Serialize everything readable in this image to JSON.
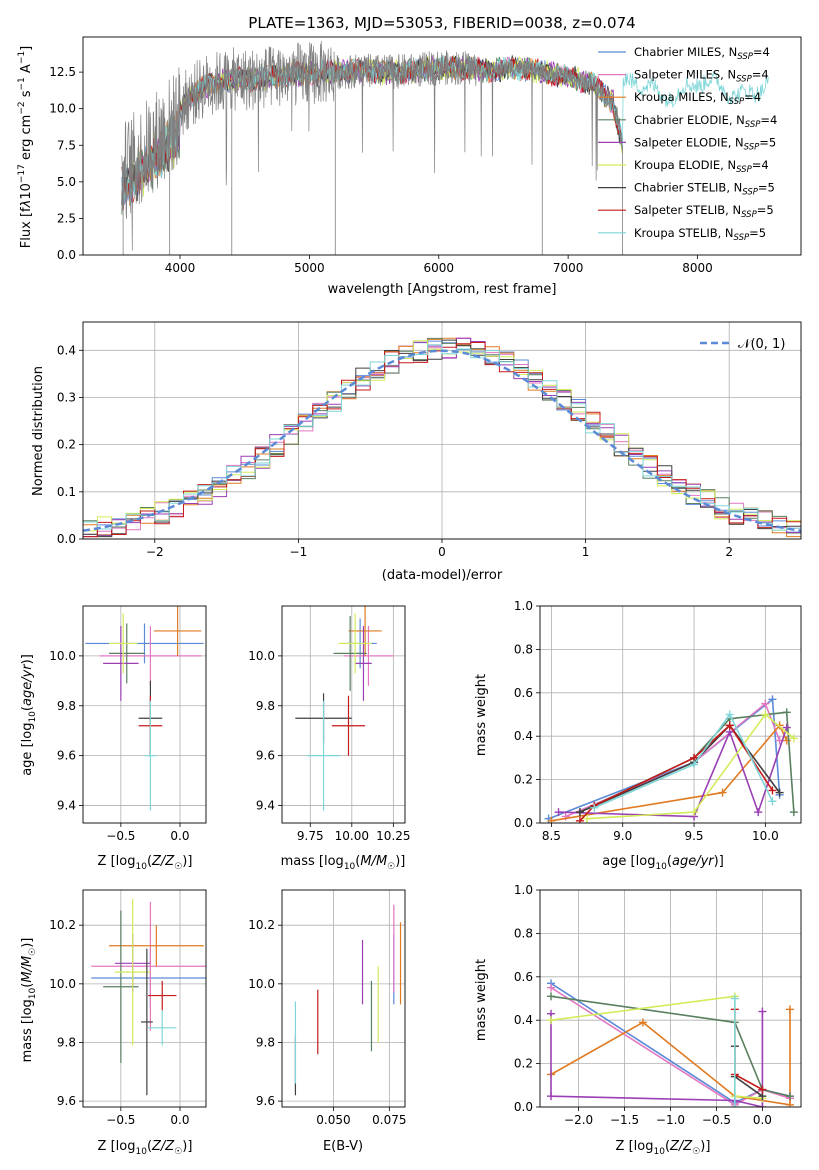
{
  "colors": {
    "chabrier_miles": "#5b8bd6",
    "salpeter_miles": "#e377c2",
    "kroupa_miles": "#e07b22",
    "chabrier_elodie": "#5a8060",
    "salpeter_elodie": "#9b3fb5",
    "kroupa_elodie": "#d2ec5a",
    "chabrier_stelib": "#404040",
    "salpeter_stelib": "#c41a1a",
    "kroupa_stelib": "#7fd6d8",
    "gaussian": "#5b8bd6",
    "raw_spectrum": "#808080",
    "grid": "#b0b0b0"
  },
  "chart_data": [
    {
      "id": "spectrum",
      "type": "line",
      "title": "PLATE=1363, MJD=53053, FIBERID=0038, z=0.074",
      "xlabel": "wavelength [Angstrom, rest frame]",
      "ylabel": "Flux [f_λ10^-17 erg cm^-2 s^-1 A^-1]",
      "xlim": [
        3250,
        8800
      ],
      "ylim": [
        0,
        14.9
      ],
      "xticks": [
        "4000",
        "5000",
        "6000",
        "7000",
        "8000"
      ],
      "yticks": [
        "0.0",
        "2.5",
        "5.0",
        "7.5",
        "10.0",
        "12.5"
      ],
      "grid": false,
      "legend_placement": "right",
      "legend": [
        {
          "label": "Chabrier MILES, N",
          "sub": "SSP",
          "suffix": "=4",
          "color": "#5b8bd6"
        },
        {
          "label": "Salpeter MILES, N",
          "sub": "SSP",
          "suffix": "=4",
          "color": "#e377c2"
        },
        {
          "label": "Kroupa MILES, N",
          "sub": "SSP",
          "suffix": "=4",
          "color": "#e07b22"
        },
        {
          "label": "Chabrier ELODIE, N",
          "sub": "SSP",
          "suffix": "=4",
          "color": "#5a8060"
        },
        {
          "label": "Salpeter ELODIE, N",
          "sub": "SSP",
          "suffix": "=5",
          "color": "#9b3fb5"
        },
        {
          "label": "Kroupa ELODIE, N",
          "sub": "SSP",
          "suffix": "=4",
          "color": "#d2ec5a"
        },
        {
          "label": "Chabrier STELIB, N",
          "sub": "SSP",
          "suffix": "=5",
          "color": "#404040"
        },
        {
          "label": "Salpeter STELIB, N",
          "sub": "SSP",
          "suffix": "=5",
          "color": "#c41a1a"
        },
        {
          "label": "Kroupa STELIB, N",
          "sub": "SSP",
          "suffix": "=5",
          "color": "#7fd6d8"
        }
      ],
      "continuum": {
        "x": [
          3550,
          3700,
          3850,
          3950,
          4050,
          4200,
          4400,
          4600,
          4800,
          5000,
          5200,
          5400,
          5600,
          5800,
          6000,
          6200,
          6400,
          6600,
          6800,
          7000,
          7200,
          7350,
          7420
        ],
        "y": [
          5.6,
          6.8,
          8.2,
          9.0,
          10.6,
          11.6,
          12.0,
          12.0,
          12.3,
          12.4,
          12.5,
          12.6,
          12.5,
          12.6,
          12.8,
          12.8,
          12.6,
          12.8,
          12.5,
          12.2,
          11.6,
          10.4,
          7.5
        ]
      },
      "model_range": [
        3550,
        7420
      ],
      "kroupa_stelib_range": [
        3550,
        8550
      ],
      "absorption_lines": [
        3560,
        3920,
        4400,
        5200,
        6800,
        7420
      ]
    },
    {
      "id": "residuals",
      "type": "bar",
      "xlabel": "(data-model)/error",
      "ylabel": "Normed distribution",
      "xlim": [
        -2.5,
        2.5
      ],
      "ylim": [
        0,
        0.46
      ],
      "xticks": [
        "−2",
        "−1",
        "0",
        "1",
        "2"
      ],
      "yticks": [
        "0.0",
        "0.1",
        "0.2",
        "0.3",
        "0.4"
      ],
      "grid": true,
      "legend_placement": "top-right",
      "legend_label": "𝒩(0, 1)",
      "bin_width": 0.1
    },
    {
      "id": "age_vs_Z",
      "type": "scatter",
      "xlabel": "Z [log10(Z/Z☉)]",
      "ylabel": "age  [log10(age/yr)]",
      "xlim": [
        -0.82,
        0.22
      ],
      "ylim": [
        9.33,
        10.2
      ],
      "xticks": [
        "−0.5",
        "0.0"
      ],
      "yticks": [
        "9.4",
        "9.6",
        "9.8",
        "10.0"
      ],
      "grid": true,
      "points": [
        {
          "m": "chabrier_miles",
          "x": -0.3,
          "xerr": 0.5,
          "y": 10.05,
          "yerr": 0.08
        },
        {
          "m": "salpeter_miles",
          "x": -0.25,
          "xerr": 0.43,
          "y": 10.0,
          "yerr": 0.12
        },
        {
          "m": "kroupa_miles",
          "x": -0.02,
          "xerr": 0.2,
          "y": 10.1,
          "yerr": 0.1
        },
        {
          "m": "chabrier_elodie",
          "x": -0.45,
          "xerr": 0.15,
          "y": 10.01,
          "yerr": 0.12
        },
        {
          "m": "salpeter_elodie",
          "x": -0.5,
          "xerr": 0.15,
          "y": 9.97,
          "yerr": 0.15
        },
        {
          "m": "kroupa_elodie",
          "x": -0.48,
          "xerr": 0.12,
          "y": 10.05,
          "yerr": 0.12
        },
        {
          "m": "chabrier_stelib",
          "x": -0.25,
          "xerr": 0.1,
          "y": 9.75,
          "yerr": 0.15
        },
        {
          "m": "salpeter_stelib",
          "x": -0.25,
          "xerr": 0.1,
          "y": 9.72,
          "yerr": 0.12
        },
        {
          "m": "kroupa_stelib",
          "x": -0.25,
          "xerr": 0.05,
          "y": 9.6,
          "yerr": 0.22
        }
      ]
    },
    {
      "id": "age_vs_mass",
      "type": "scatter",
      "xlabel": "mass [log10(M/M☉)]",
      "ylabel": "",
      "xlim": [
        9.58,
        10.32
      ],
      "ylim": [
        9.33,
        10.2
      ],
      "xticks": [
        "9.75",
        "10.00",
        "10.25"
      ],
      "yticks": [
        "9.4",
        "9.6",
        "9.8",
        "10.0"
      ],
      "grid": true,
      "points": [
        {
          "m": "chabrier_miles",
          "x": 10.05,
          "xerr": 0.1,
          "y": 10.05,
          "yerr": 0.1
        },
        {
          "m": "salpeter_miles",
          "x": 10.1,
          "xerr": 0.15,
          "y": 10.0,
          "yerr": 0.12
        },
        {
          "m": "kroupa_miles",
          "x": 10.08,
          "xerr": 0.1,
          "y": 10.1,
          "yerr": 0.1
        },
        {
          "m": "chabrier_elodie",
          "x": 9.99,
          "xerr": 0.1,
          "y": 10.01,
          "yerr": 0.15
        },
        {
          "m": "salpeter_elodie",
          "x": 10.07,
          "xerr": 0.05,
          "y": 9.97,
          "yerr": 0.15
        },
        {
          "m": "kroupa_elodie",
          "x": 10.02,
          "xerr": 0.1,
          "y": 10.05,
          "yerr": 0.12
        },
        {
          "m": "chabrier_stelib",
          "x": 9.83,
          "xerr": 0.17,
          "y": 9.75,
          "yerr": 0.1
        },
        {
          "m": "salpeter_stelib",
          "x": 9.98,
          "xerr": 0.1,
          "y": 9.72,
          "yerr": 0.12
        },
        {
          "m": "kroupa_stelib",
          "x": 9.83,
          "xerr": 0.1,
          "y": 9.6,
          "yerr": 0.22
        }
      ]
    },
    {
      "id": "massweight_vs_age",
      "type": "line",
      "xlabel": "age  [log10(age/yr)]",
      "ylabel": "mass weight",
      "xlim": [
        8.42,
        10.25
      ],
      "ylim": [
        0,
        1
      ],
      "xticks": [
        "8.5",
        "9.0",
        "9.5",
        "10.0"
      ],
      "yticks": [
        "0.0",
        "0.2",
        "0.4",
        "0.6",
        "0.8",
        "1.0"
      ],
      "grid": true,
      "series": [
        {
          "m": "chabrier_miles",
          "x": [
            8.48,
            9.5,
            10.05,
            10.1
          ],
          "y": [
            0.02,
            0.28,
            0.57,
            0.13
          ]
        },
        {
          "m": "salpeter_miles",
          "x": [
            8.6,
            9.5,
            10.0,
            10.1
          ],
          "y": [
            0.03,
            0.28,
            0.55,
            0.38
          ]
        },
        {
          "m": "kroupa_miles",
          "x": [
            8.5,
            9.7,
            10.1,
            10.15
          ],
          "y": [
            0.01,
            0.14,
            0.45,
            0.38
          ]
        },
        {
          "m": "chabrier_elodie",
          "x": [
            8.7,
            9.5,
            9.75,
            10.15,
            10.2
          ],
          "y": [
            0.05,
            0.3,
            0.48,
            0.51,
            0.05
          ]
        },
        {
          "m": "salpeter_elodie",
          "x": [
            8.55,
            9.5,
            9.75,
            9.95,
            10.15
          ],
          "y": [
            0.05,
            0.03,
            0.42,
            0.05,
            0.44
          ]
        },
        {
          "m": "kroupa_elodie",
          "x": [
            8.75,
            9.5,
            10.0,
            10.2
          ],
          "y": [
            0.02,
            0.05,
            0.5,
            0.39
          ]
        },
        {
          "m": "chabrier_stelib",
          "x": [
            8.7,
            9.5,
            9.75,
            10.1
          ],
          "y": [
            0.05,
            0.28,
            0.45,
            0.14
          ]
        },
        {
          "m": "salpeter_stelib",
          "x": [
            8.7,
            8.8,
            9.5,
            9.75,
            10.05
          ],
          "y": [
            0.01,
            0.08,
            0.3,
            0.45,
            0.15
          ]
        },
        {
          "m": "kroupa_stelib",
          "x": [
            8.8,
            9.5,
            9.75,
            10.05
          ],
          "y": [
            0.07,
            0.27,
            0.5,
            0.1
          ]
        }
      ]
    },
    {
      "id": "mass_vs_Z",
      "type": "scatter",
      "xlabel": "Z [log10(Z/Z☉)]",
      "ylabel": "mass [log10(M/M☉)]",
      "xlim": [
        -0.82,
        0.22
      ],
      "ylim": [
        9.58,
        10.32
      ],
      "xticks": [
        "−0.5",
        "0.0"
      ],
      "yticks": [
        "9.6",
        "9.8",
        "10.0",
        "10.2"
      ],
      "grid": true,
      "points": [
        {
          "m": "chabrier_miles",
          "x": -0.25,
          "xerr": 0.5,
          "y": 10.02,
          "yerr": 0.1
        },
        {
          "m": "salpeter_miles",
          "x": -0.25,
          "xerr": 0.5,
          "y": 10.06,
          "yerr": 0.22
        },
        {
          "m": "kroupa_miles",
          "x": -0.2,
          "xerr": 0.4,
          "y": 10.13,
          "yerr": 0.07
        },
        {
          "m": "chabrier_elodie",
          "x": -0.5,
          "xerr": 0.15,
          "y": 9.99,
          "yerr": 0.26
        },
        {
          "m": "salpeter_elodie",
          "x": -0.4,
          "xerr": 0.15,
          "y": 10.07,
          "yerr": 0.1
        },
        {
          "m": "kroupa_elodie",
          "x": -0.4,
          "xerr": 0.15,
          "y": 10.04,
          "yerr": 0.25
        },
        {
          "m": "chabrier_stelib",
          "x": -0.28,
          "xerr": 0.05,
          "y": 9.87,
          "yerr": 0.25
        },
        {
          "m": "salpeter_stelib",
          "x": -0.15,
          "xerr": 0.12,
          "y": 9.96,
          "yerr": 0.05
        },
        {
          "m": "kroupa_stelib",
          "x": -0.15,
          "xerr": 0.12,
          "y": 9.85,
          "yerr": 0.06
        }
      ]
    },
    {
      "id": "mass_vs_ebv",
      "type": "scatter",
      "xlabel": "E(B-V)",
      "ylabel": "",
      "xlim": [
        0.027,
        0.082
      ],
      "ylim": [
        9.58,
        10.32
      ],
      "xticks": [
        "0.050",
        "0.075"
      ],
      "yticks": [
        "9.6",
        "9.8",
        "10.0",
        "10.2"
      ],
      "grid": true,
      "points": [
        {
          "m": "chabrier_miles",
          "x": 0.077,
          "xerr": 0.0,
          "y": 10.05,
          "yerr": 0.12
        },
        {
          "m": "salpeter_miles",
          "x": 0.077,
          "xerr": 0.0,
          "y": 10.12,
          "yerr": 0.15
        },
        {
          "m": "kroupa_miles",
          "x": 0.08,
          "xerr": 0.0,
          "y": 10.07,
          "yerr": 0.14
        },
        {
          "m": "chabrier_elodie",
          "x": 0.067,
          "xerr": 0.0,
          "y": 9.89,
          "yerr": 0.12
        },
        {
          "m": "salpeter_elodie",
          "x": 0.063,
          "xerr": 0.0,
          "y": 10.04,
          "yerr": 0.11
        },
        {
          "m": "kroupa_elodie",
          "x": 0.07,
          "xerr": 0.0,
          "y": 9.93,
          "yerr": 0.13
        },
        {
          "m": "chabrier_stelib",
          "x": 0.033,
          "xerr": 0.0,
          "y": 9.72,
          "yerr": 0.1
        },
        {
          "m": "salpeter_stelib",
          "x": 0.043,
          "xerr": 0.0,
          "y": 9.87,
          "yerr": 0.11
        },
        {
          "m": "kroupa_stelib",
          "x": 0.033,
          "xerr": 0.0,
          "y": 9.8,
          "yerr": 0.14
        }
      ]
    },
    {
      "id": "massweight_vs_Z",
      "type": "line",
      "xlabel": "Z [log10(Z/Z☉)]",
      "ylabel": "mass weight",
      "xlim": [
        -2.42,
        0.42
      ],
      "ylim": [
        0,
        1
      ],
      "xticks": [
        "−2.0",
        "−1.5",
        "−1.0",
        "−0.5",
        "0.0"
      ],
      "yticks": [
        "0.0",
        "0.2",
        "0.4",
        "0.6",
        "0.8",
        "1.0"
      ],
      "grid": true,
      "series": [
        {
          "m": "chabrier_miles",
          "x": [
            -2.3,
            -0.3,
            0.0,
            0.3
          ],
          "y": [
            0.57,
            0.02,
            0.08,
            0.05
          ]
        },
        {
          "m": "salpeter_miles",
          "x": [
            -2.3,
            -0.3,
            0.0,
            0.3
          ],
          "y": [
            0.55,
            0.01,
            0.08,
            0.04
          ]
        },
        {
          "m": "kroupa_miles",
          "x": [
            -2.3,
            -1.3,
            -0.3,
            0.3,
            0.3
          ],
          "y": [
            0.15,
            0.39,
            0.05,
            0.01,
            0.45
          ]
        },
        {
          "m": "chabrier_elodie",
          "x": [
            -2.3,
            -0.3,
            0.0,
            0.3
          ],
          "y": [
            0.51,
            0.39,
            0.08,
            0.05
          ]
        },
        {
          "m": "salpeter_elodie",
          "x": [
            -2.3,
            -2.3,
            -0.3,
            0.0,
            0.0
          ],
          "y": [
            0.43,
            0.05,
            0.03,
            0.0,
            0.44
          ]
        },
        {
          "m": "kroupa_elodie",
          "x": [
            -2.3,
            -0.3,
            -0.3,
            0.0
          ],
          "y": [
            0.4,
            0.51,
            0.05,
            0.04
          ]
        },
        {
          "m": "chabrier_stelib",
          "x": [
            -0.3,
            -0.3,
            0.0
          ],
          "y": [
            0.28,
            0.14,
            0.05
          ]
        },
        {
          "m": "salpeter_stelib",
          "x": [
            -0.3,
            -0.3,
            0.0
          ],
          "y": [
            0.45,
            0.15,
            0.08
          ]
        },
        {
          "m": "kroupa_stelib",
          "x": [
            -0.3,
            -0.3
          ],
          "y": [
            0.5,
            0.0
          ]
        }
      ]
    }
  ]
}
